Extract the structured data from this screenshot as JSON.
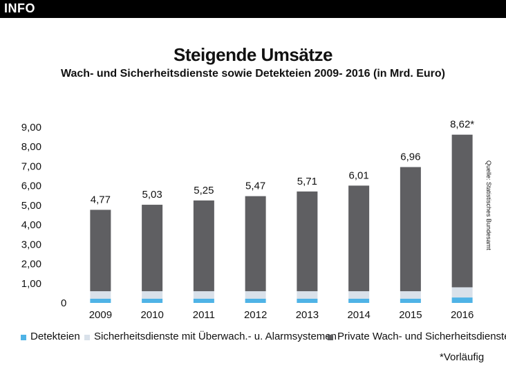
{
  "header": {
    "tag": "INFO"
  },
  "source": "Quelle: Statistisches Bundesamt",
  "footnote": "*Vorläufig",
  "colors": {
    "detekteien": "#4fb3e6",
    "sicherheit_alarm": "#d9e1ea",
    "private": "#5f5f62"
  },
  "chart_data": {
    "type": "bar",
    "stacked": true,
    "title": "Steigende Umsätze",
    "subtitle": "Wach- und Sicherheitsdienste sowie Detekteien 2009- 2016 (in Mrd. Euro)",
    "categories": [
      "2009",
      "2010",
      "2011",
      "2012",
      "2013",
      "2014",
      "2015",
      "2016"
    ],
    "y_ticks": [
      "0",
      "1,00",
      "2,00",
      "3,00",
      "4,00",
      "5,00",
      "6,00",
      "7,00",
      "8,00",
      "9,00"
    ],
    "ylim": [
      0,
      9
    ],
    "totals": [
      4.77,
      5.03,
      5.25,
      5.47,
      5.71,
      6.01,
      6.96,
      8.62
    ],
    "total_labels": [
      "4,77",
      "5,03",
      "5,25",
      "5,47",
      "5,71",
      "6,01",
      "6,96",
      "8,62*"
    ],
    "series": [
      {
        "name": "Detekteien",
        "values": [
          0.22,
          0.22,
          0.22,
          0.22,
          0.22,
          0.22,
          0.22,
          0.28
        ]
      },
      {
        "name": "Sicherheitsdienste mit Überwach.- u. Alarmsystemen",
        "values": [
          0.38,
          0.38,
          0.38,
          0.38,
          0.38,
          0.38,
          0.38,
          0.52
        ]
      },
      {
        "name": "Private Wach- und Sicherheitsdienste",
        "values": [
          4.17,
          4.43,
          4.65,
          4.87,
          5.11,
          5.41,
          6.36,
          7.82
        ]
      }
    ]
  }
}
